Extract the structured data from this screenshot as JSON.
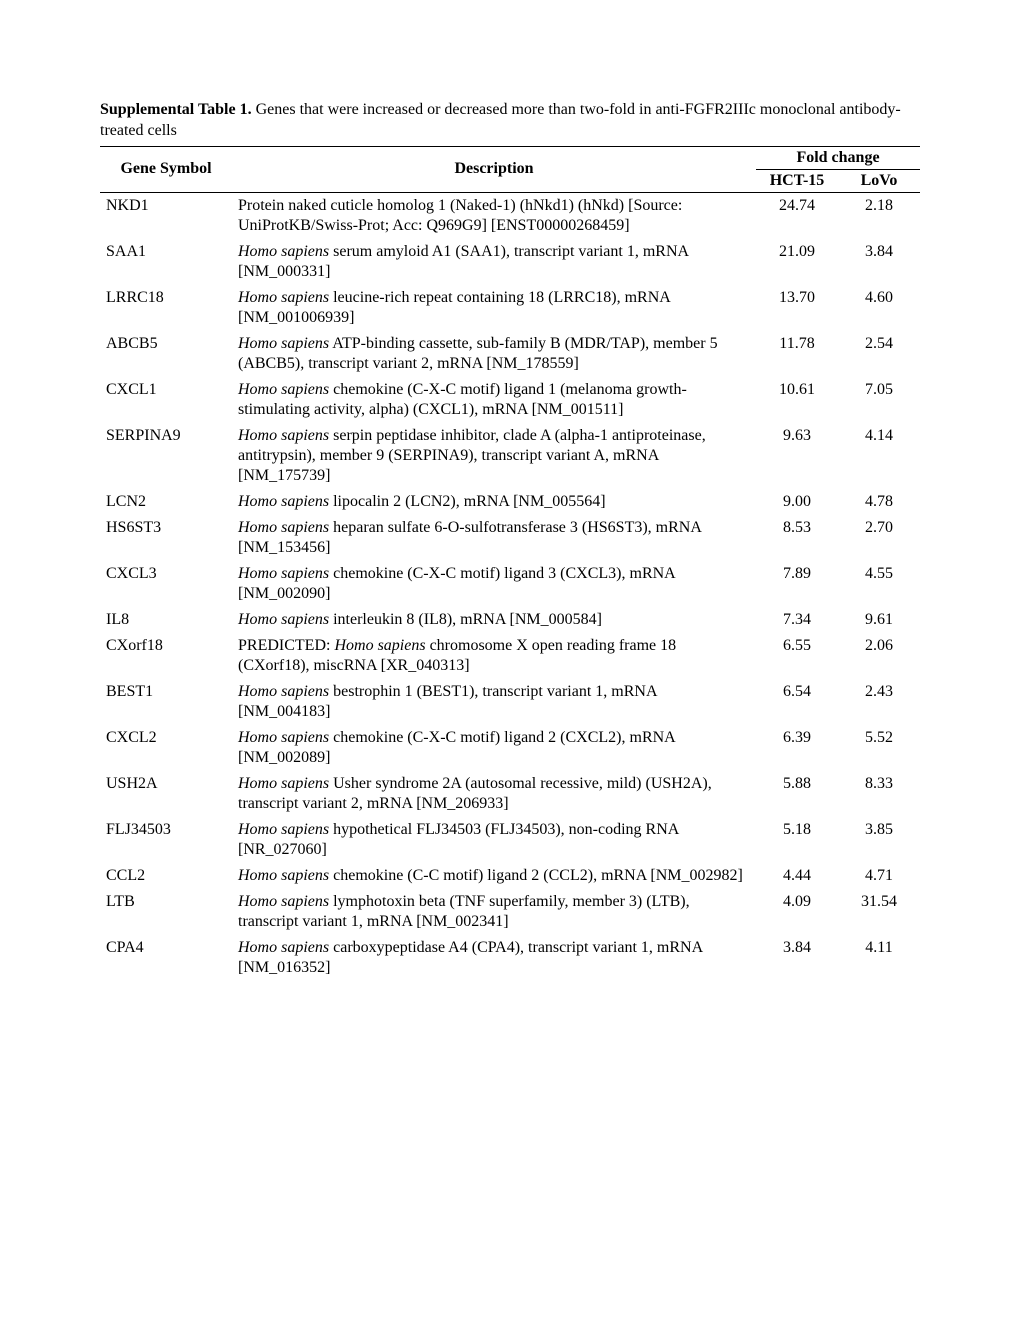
{
  "caption": {
    "title": "Supplemental Table 1.",
    "text": " Genes that were increased or decreased more than two-fold in anti-FGFR2IIIc monoclonal antibody-treated cells"
  },
  "headers": {
    "gene": "Gene Symbol",
    "desc": "Description",
    "fold": "Fold change",
    "hct15": "HCT-15",
    "lovo": "LoVo"
  },
  "rows": [
    {
      "gene": "NKD1",
      "desc_pre": "Protein naked cuticle homolog 1 (Naked-1) (hNkd1) (hNkd) [Source: UniProtKB/Swiss-Prot; Acc: Q969G9] [ENST00000268459]",
      "italic": "",
      "desc_post": "",
      "hct": "24.74",
      "lovo": "2.18"
    },
    {
      "gene": "SAA1",
      "desc_pre": "",
      "italic": "Homo sapiens",
      "desc_post": " serum amyloid A1 (SAA1), transcript variant 1, mRNA [NM_000331]",
      "hct": "21.09",
      "lovo": "3.84"
    },
    {
      "gene": "LRRC18",
      "desc_pre": "",
      "italic": "Homo sapiens",
      "desc_post": " leucine-rich repeat containing 18 (LRRC18), mRNA [NM_001006939]",
      "hct": "13.70",
      "lovo": "4.60"
    },
    {
      "gene": "ABCB5",
      "desc_pre": "",
      "italic": "Homo sapiens",
      "desc_post": " ATP-binding cassette, sub-family B (MDR/TAP), member 5 (ABCB5), transcript variant 2, mRNA [NM_178559]",
      "hct": "11.78",
      "lovo": "2.54"
    },
    {
      "gene": "CXCL1",
      "desc_pre": "",
      "italic": "Homo sapiens",
      "desc_post": " chemokine (C-X-C motif) ligand 1 (melanoma growth-stimulating activity, alpha) (CXCL1), mRNA [NM_001511]",
      "hct": "10.61",
      "lovo": "7.05"
    },
    {
      "gene": "SERPINA9",
      "desc_pre": "",
      "italic": "Homo sapiens",
      "desc_post": " serpin peptidase inhibitor, clade A (alpha-1 antiproteinase, antitrypsin), member 9 (SERPINA9), transcript variant A, mRNA [NM_175739]",
      "hct": "9.63",
      "lovo": "4.14"
    },
    {
      "gene": "LCN2",
      "desc_pre": "",
      "italic": "Homo sapiens",
      "desc_post": " lipocalin 2 (LCN2), mRNA [NM_005564]",
      "hct": "9.00",
      "lovo": "4.78"
    },
    {
      "gene": "HS6ST3",
      "desc_pre": "",
      "italic": "Homo sapiens",
      "desc_post": " heparan sulfate 6-O-sulfotransferase 3 (HS6ST3), mRNA [NM_153456]",
      "hct": "8.53",
      "lovo": "2.70"
    },
    {
      "gene": "CXCL3",
      "desc_pre": "",
      "italic": "Homo sapiens",
      "desc_post": " chemokine (C-X-C motif) ligand 3 (CXCL3), mRNA [NM_002090]",
      "hct": "7.89",
      "lovo": "4.55"
    },
    {
      "gene": "IL8",
      "desc_pre": "",
      "italic": "Homo sapiens",
      "desc_post": " interleukin 8 (IL8), mRNA [NM_000584]",
      "hct": "7.34",
      "lovo": "9.61"
    },
    {
      "gene": "CXorf18",
      "desc_pre": "PREDICTED: ",
      "italic": "Homo sapiens",
      "desc_post": " chromosome X open reading frame 18 (CXorf18), miscRNA [XR_040313]",
      "hct": "6.55",
      "lovo": "2.06"
    },
    {
      "gene": "BEST1",
      "desc_pre": "",
      "italic": "Homo sapiens",
      "desc_post": " bestrophin 1 (BEST1), transcript variant 1, mRNA [NM_004183]",
      "hct": "6.54",
      "lovo": "2.43"
    },
    {
      "gene": "CXCL2",
      "desc_pre": "",
      "italic": "Homo sapiens",
      "desc_post": " chemokine (C-X-C motif) ligand 2 (CXCL2), mRNA [NM_002089]",
      "hct": "6.39",
      "lovo": "5.52"
    },
    {
      "gene": "USH2A",
      "desc_pre": "",
      "italic": "Homo sapiens",
      "desc_post": " Usher syndrome 2A (autosomal recessive, mild) (USH2A), transcript variant 2, mRNA [NM_206933]",
      "hct": "5.88",
      "lovo": "8.33"
    },
    {
      "gene": "FLJ34503",
      "desc_pre": "",
      "italic": "Homo sapiens",
      "desc_post": " hypothetical FLJ34503 (FLJ34503), non-coding RNA [NR_027060]",
      "hct": "5.18",
      "lovo": "3.85"
    },
    {
      "gene": "CCL2",
      "desc_pre": "",
      "italic": "Homo sapiens",
      "desc_post": " chemokine (C-C motif) ligand 2 (CCL2), mRNA [NM_002982]",
      "hct": "4.44",
      "lovo": "4.71"
    },
    {
      "gene": "LTB",
      "desc_pre": "",
      "italic": "Homo sapiens",
      "desc_post": " lymphotoxin beta (TNF superfamily, member 3) (LTB), transcript variant 1, mRNA [NM_002341]",
      "hct": "4.09",
      "lovo": "31.54"
    },
    {
      "gene": "CPA4",
      "desc_pre": "",
      "italic": "Homo sapiens",
      "desc_post": " carboxypeptidase A4 (CPA4), transcript variant 1, mRNA [NM_016352]",
      "hct": "3.84",
      "lovo": "4.11"
    }
  ]
}
